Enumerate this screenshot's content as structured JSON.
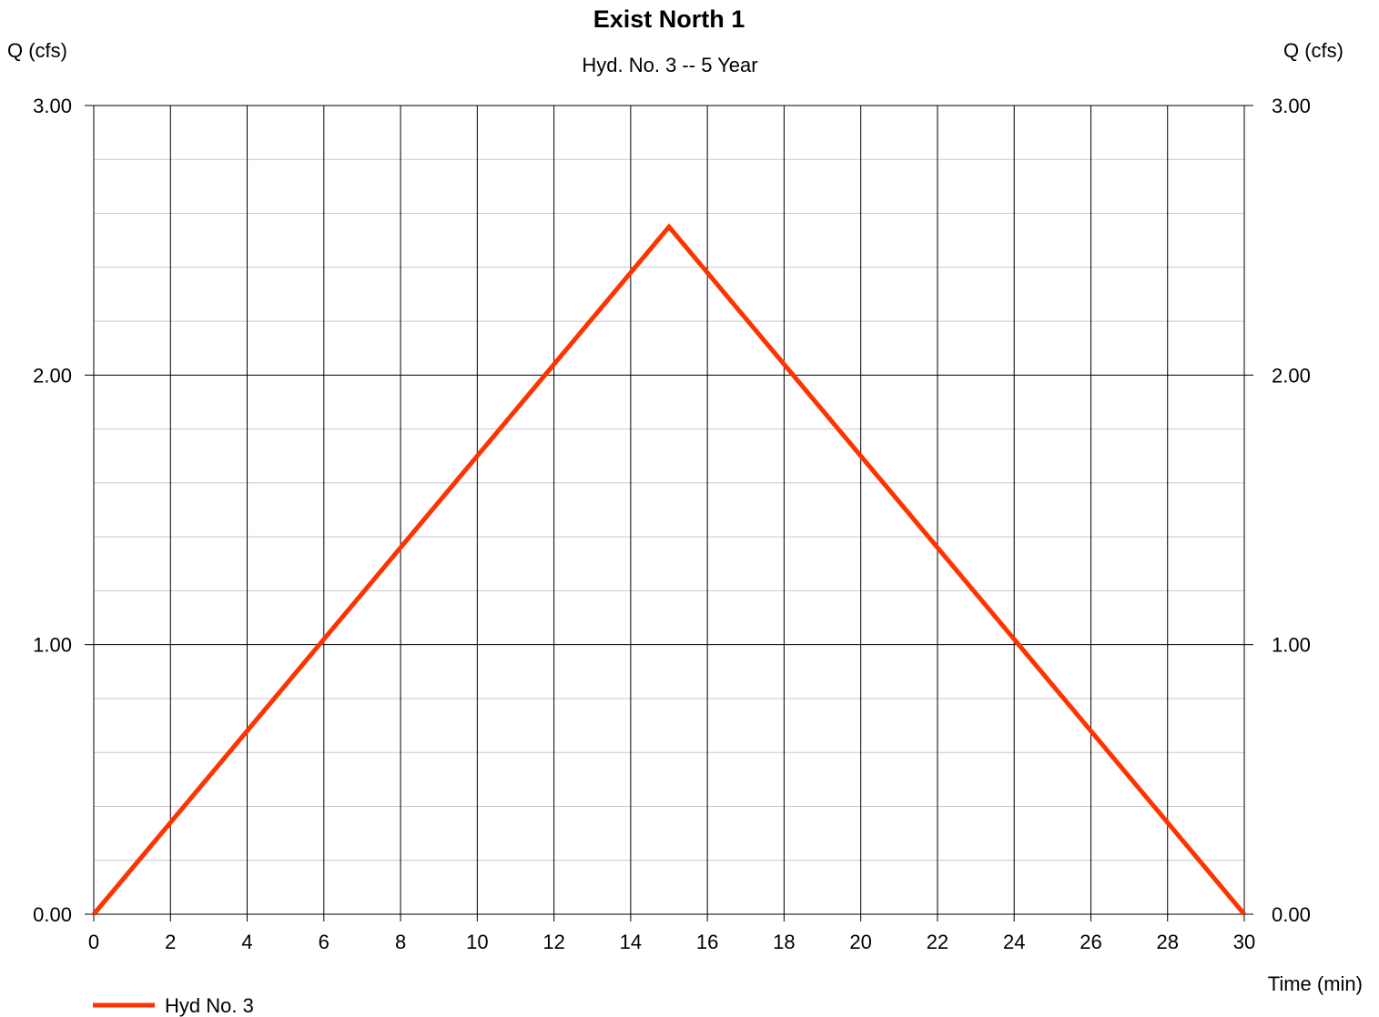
{
  "chart_data": {
    "type": "line",
    "title": "Exist North 1",
    "subtitle": "Hyd. No. 3 -- 5 Year",
    "ylabel_left": "Q (cfs)",
    "ylabel_right": "Q (cfs)",
    "xlabel": "Time (min)",
    "xlim": [
      0,
      30
    ],
    "ylim": [
      0,
      3
    ],
    "x_ticks": [
      "0",
      "2",
      "4",
      "6",
      "8",
      "10",
      "12",
      "14",
      "16",
      "18",
      "20",
      "22",
      "24",
      "26",
      "28",
      "30"
    ],
    "y_ticks": [
      "0.00",
      "1.00",
      "2.00",
      "3.00"
    ],
    "grid": true,
    "legend_position": "bottom-left",
    "series": [
      {
        "name": "Hyd No. 3",
        "color": "#ff3300",
        "x": [
          0,
          15,
          30
        ],
        "y": [
          0,
          2.55,
          0
        ]
      }
    ]
  }
}
